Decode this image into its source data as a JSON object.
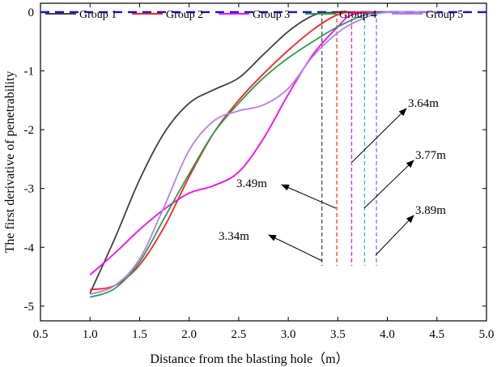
{
  "chart_data": {
    "type": "line",
    "xlabel": "Distance from the blasting hole（m）",
    "ylabel": "The first derivative of penetrability",
    "xlim": [
      0.5,
      5.0
    ],
    "ylim": [
      -5.25,
      0.15
    ],
    "x_ticks": [
      "0.5",
      "1.0",
      "1.5",
      "2.0",
      "2.5",
      "3.0",
      "3.5",
      "4.0",
      "4.5",
      "5.0"
    ],
    "y_ticks": [
      "0",
      "-1",
      "-2",
      "-3",
      "-4",
      "-5"
    ],
    "legend_position": "top",
    "grid": false,
    "reference_line": {
      "y": 0,
      "color": "#1010e0",
      "style": "dashed"
    },
    "series": [
      {
        "name": "Group 1",
        "color": "#404040",
        "points": [
          [
            1.0,
            -4.78
          ],
          [
            1.25,
            -3.85
          ],
          [
            1.5,
            -2.85
          ],
          [
            1.75,
            -2.05
          ],
          [
            2.0,
            -1.55
          ],
          [
            2.25,
            -1.32
          ],
          [
            2.5,
            -1.12
          ],
          [
            2.75,
            -0.72
          ],
          [
            3.0,
            -0.33
          ],
          [
            3.2,
            -0.1
          ],
          [
            3.34,
            -0.02
          ],
          [
            3.6,
            0.0
          ],
          [
            3.9,
            0.0
          ]
        ]
      },
      {
        "name": "Group 2",
        "color": "#ff2020",
        "points": [
          [
            1.0,
            -4.72
          ],
          [
            1.25,
            -4.65
          ],
          [
            1.5,
            -4.3
          ],
          [
            1.75,
            -3.65
          ],
          [
            2.0,
            -2.8
          ],
          [
            2.25,
            -2.05
          ],
          [
            2.5,
            -1.5
          ],
          [
            2.75,
            -1.05
          ],
          [
            3.0,
            -0.65
          ],
          [
            3.25,
            -0.3
          ],
          [
            3.49,
            -0.05
          ],
          [
            3.7,
            0.0
          ],
          [
            4.0,
            0.0
          ]
        ]
      },
      {
        "name": "Group 3",
        "color": "#ff00ff",
        "points": [
          [
            1.0,
            -4.47
          ],
          [
            1.25,
            -4.1
          ],
          [
            1.5,
            -3.7
          ],
          [
            1.75,
            -3.35
          ],
          [
            2.0,
            -3.08
          ],
          [
            2.25,
            -2.95
          ],
          [
            2.5,
            -2.72
          ],
          [
            2.75,
            -2.15
          ],
          [
            3.0,
            -1.4
          ],
          [
            3.25,
            -0.72
          ],
          [
            3.5,
            -0.25
          ],
          [
            3.64,
            -0.05
          ],
          [
            3.9,
            0.0
          ],
          [
            4.3,
            0.0
          ]
        ]
      },
      {
        "name": "Group 4",
        "color": "#2a9d4e",
        "points": [
          [
            1.0,
            -4.85
          ],
          [
            1.25,
            -4.7
          ],
          [
            1.5,
            -4.25
          ],
          [
            1.75,
            -3.5
          ],
          [
            2.0,
            -2.75
          ],
          [
            2.25,
            -2.05
          ],
          [
            2.5,
            -1.55
          ],
          [
            2.75,
            -1.12
          ],
          [
            3.0,
            -0.78
          ],
          [
            3.25,
            -0.5
          ],
          [
            3.5,
            -0.25
          ],
          [
            3.77,
            -0.05
          ],
          [
            4.0,
            0.0
          ],
          [
            4.4,
            0.0
          ]
        ]
      },
      {
        "name": "Group 5",
        "color": "#b080f0",
        "points": [
          [
            1.0,
            -4.8
          ],
          [
            1.25,
            -4.65
          ],
          [
            1.5,
            -4.2
          ],
          [
            1.75,
            -3.3
          ],
          [
            2.0,
            -2.35
          ],
          [
            2.25,
            -1.85
          ],
          [
            2.5,
            -1.68
          ],
          [
            2.75,
            -1.58
          ],
          [
            3.0,
            -1.3
          ],
          [
            3.25,
            -0.75
          ],
          [
            3.5,
            -0.35
          ],
          [
            3.7,
            -0.15
          ],
          [
            3.89,
            -0.03
          ],
          [
            4.1,
            0.0
          ],
          [
            4.5,
            0.0
          ]
        ]
      }
    ],
    "markers": [
      {
        "x": 3.34,
        "color": "#404040",
        "label": "3.34m"
      },
      {
        "x": 3.49,
        "color": "#ff2020",
        "label": "3.49m"
      },
      {
        "x": 3.64,
        "color": "#ff00ff",
        "label": "3.64m"
      },
      {
        "x": 3.77,
        "color": "#20c0c0",
        "label": "3.77m"
      },
      {
        "x": 3.89,
        "color": "#9060d0",
        "label": "3.89m"
      }
    ]
  }
}
